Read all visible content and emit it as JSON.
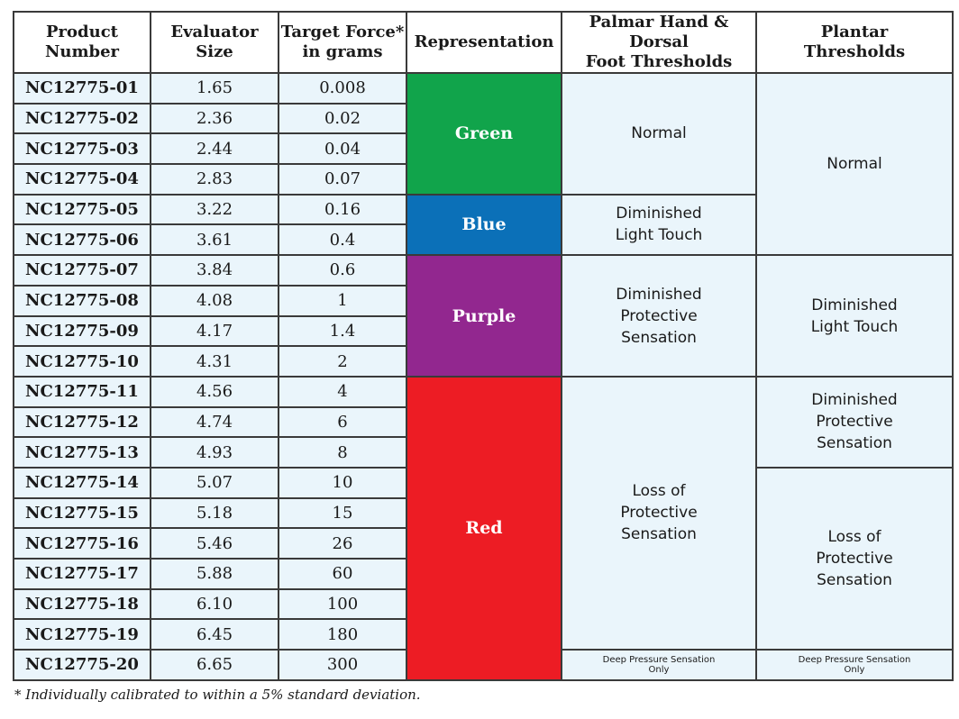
{
  "headers": {
    "product": "Product\nNumber",
    "size": "Evaluator\nSize",
    "force": "Target Force*\nin grams",
    "representation": "Representation",
    "palmar": "Palmar Hand & Dorsal\nFoot Thresholds",
    "plantar": "Plantar\nThresholds"
  },
  "rows": [
    {
      "product": "NC12775-01",
      "size": "1.65",
      "force": "0.008"
    },
    {
      "product": "NC12775-02",
      "size": "2.36",
      "force": "0.02"
    },
    {
      "product": "NC12775-03",
      "size": "2.44",
      "force": "0.04"
    },
    {
      "product": "NC12775-04",
      "size": "2.83",
      "force": "0.07"
    },
    {
      "product": "NC12775-05",
      "size": "3.22",
      "force": "0.16"
    },
    {
      "product": "NC12775-06",
      "size": "3.61",
      "force": "0.4"
    },
    {
      "product": "NC12775-07",
      "size": "3.84",
      "force": "0.6"
    },
    {
      "product": "NC12775-08",
      "size": "4.08",
      "force": "1"
    },
    {
      "product": "NC12775-09",
      "size": "4.17",
      "force": "1.4"
    },
    {
      "product": "NC12775-10",
      "size": "4.31",
      "force": "2"
    },
    {
      "product": "NC12775-11",
      "size": "4.56",
      "force": "4"
    },
    {
      "product": "NC12775-12",
      "size": "4.74",
      "force": "6"
    },
    {
      "product": "NC12775-13",
      "size": "4.93",
      "force": "8"
    },
    {
      "product": "NC12775-14",
      "size": "5.07",
      "force": "10"
    },
    {
      "product": "NC12775-15",
      "size": "5.18",
      "force": "15"
    },
    {
      "product": "NC12775-16",
      "size": "5.46",
      "force": "26"
    },
    {
      "product": "NC12775-17",
      "size": "5.88",
      "force": "60"
    },
    {
      "product": "NC12775-18",
      "size": "6.10",
      "force": "100"
    },
    {
      "product": "NC12775-19",
      "size": "6.45",
      "force": "180"
    },
    {
      "product": "NC12775-20",
      "size": "6.65",
      "force": "300"
    }
  ],
  "representation": [
    {
      "label": "Green",
      "color": "#11a44b"
    },
    {
      "label": "Blue",
      "color": "#0b70b8"
    },
    {
      "label": "Purple",
      "color": "#92278f"
    },
    {
      "label": "Red",
      "color": "#ed1c24"
    }
  ],
  "palmar": [
    "Normal",
    "Diminished\nLight Touch",
    "Diminished\nProtective\nSensation",
    "Loss of\nProtective\nSensation",
    "Deep Pressure Sensation\nOnly"
  ],
  "plantar": [
    "Normal",
    "Diminished\nLight Touch",
    "Diminished\nProtective\nSensation",
    "Loss of\nProtective\nSensation",
    "Deep Pressure Sensation\nOnly"
  ],
  "footnote": "* Individually calibrated to within a 5% standard deviation."
}
